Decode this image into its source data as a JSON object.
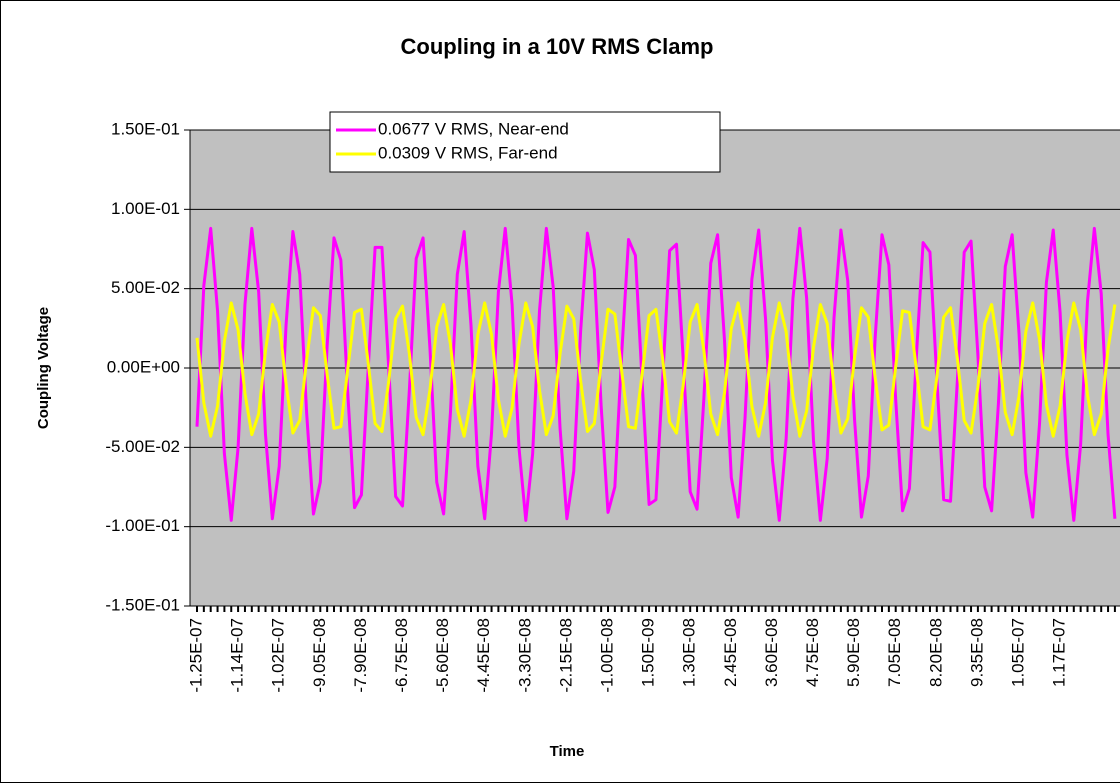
{
  "chart_data": {
    "type": "line",
    "title": "Coupling in a 10V RMS Clamp",
    "x_label": "Time",
    "y_label": "Coupling Voltage",
    "categories": [
      "-1.25E-07",
      null,
      null,
      null,
      null,
      null,
      "-1.14E-07",
      null,
      null,
      null,
      null,
      null,
      "-1.02E-07",
      null,
      null,
      null,
      null,
      null,
      "-9.05E-08",
      null,
      null,
      null,
      null,
      null,
      "-7.90E-08",
      null,
      null,
      null,
      null,
      null,
      "-6.75E-08",
      null,
      null,
      null,
      null,
      null,
      "-5.60E-08",
      null,
      null,
      null,
      null,
      null,
      "-4.45E-08",
      null,
      null,
      null,
      null,
      null,
      "-3.30E-08",
      null,
      null,
      null,
      null,
      null,
      "-2.15E-08",
      null,
      null,
      null,
      null,
      null,
      "-1.00E-08",
      null,
      null,
      null,
      null,
      null,
      "1.50E-09",
      null,
      null,
      null,
      null,
      null,
      "1.30E-08",
      null,
      null,
      null,
      null,
      null,
      "2.45E-08",
      null,
      null,
      null,
      null,
      null,
      "3.60E-08",
      null,
      null,
      null,
      null,
      null,
      "4.75E-08",
      null,
      null,
      null,
      null,
      null,
      "5.90E-08",
      null,
      null,
      null,
      null,
      null,
      "7.05E-08",
      null,
      null,
      null,
      null,
      null,
      "8.20E-08",
      null,
      null,
      null,
      null,
      null,
      "9.35E-08",
      null,
      null,
      null,
      null,
      null,
      "1.05E-07",
      null,
      null,
      null,
      null,
      null,
      "1.17E-07",
      null,
      null,
      null,
      null,
      null,
      null,
      null,
      null
    ],
    "series": [
      {
        "name": "0.0677 V RMS, Near-end",
        "color": "#ff00ff",
        "values": [
          -0.037,
          0.052,
          0.088,
          0.036,
          -0.054,
          -0.096,
          -0.05,
          0.04,
          0.088,
          0.048,
          -0.042,
          -0.095,
          -0.062,
          0.027,
          0.086,
          0.059,
          -0.028,
          -0.092,
          -0.072,
          0.014,
          0.082,
          0.068,
          -0.015,
          -0.088,
          -0.08,
          0.0,
          0.076,
          0.076,
          -0.001,
          -0.081,
          -0.087,
          -0.014,
          0.069,
          0.082,
          0.013,
          -0.072,
          -0.092,
          -0.028,
          0.059,
          0.086,
          0.027,
          -0.062,
          -0.095,
          -0.041,
          0.048,
          0.088,
          0.04,
          -0.05,
          -0.096,
          -0.054,
          0.036,
          0.088,
          0.051,
          -0.038,
          -0.095,
          -0.065,
          0.023,
          0.085,
          0.062,
          -0.024,
          -0.091,
          -0.075,
          0.009,
          0.081,
          0.071,
          -0.01,
          -0.086,
          -0.083,
          -0.005,
          0.074,
          0.078,
          0.004,
          -0.078,
          -0.089,
          -0.019,
          0.066,
          0.084,
          0.018,
          -0.069,
          -0.094,
          -0.032,
          0.056,
          0.087,
          0.031,
          -0.058,
          -0.096,
          -0.045,
          0.044,
          0.088,
          0.044,
          -0.046,
          -0.096,
          -0.057,
          0.032,
          0.087,
          0.055,
          -0.033,
          -0.094,
          -0.068,
          0.019,
          0.084,
          0.065,
          -0.02,
          -0.09,
          -0.076,
          0.006,
          0.079,
          0.073,
          -0.006,
          -0.083,
          -0.084,
          -0.008,
          0.073,
          0.08,
          0.008,
          -0.075,
          -0.09,
          -0.022,
          0.064,
          0.084,
          0.022,
          -0.066,
          -0.094,
          -0.035,
          0.054,
          0.087,
          0.035,
          -0.055,
          -0.096,
          -0.048,
          0.042,
          0.088,
          0.047,
          -0.042,
          -0.095
        ]
      },
      {
        "name": "0.0309 V RMS, Far-end",
        "color": "#ffff00",
        "values": [
          0.019,
          -0.022,
          -0.043,
          -0.024,
          0.017,
          0.041,
          0.024,
          -0.016,
          -0.042,
          -0.029,
          0.011,
          0.04,
          0.029,
          -0.01,
          -0.041,
          -0.033,
          0.005,
          0.038,
          0.033,
          -0.004,
          -0.038,
          -0.037,
          -0.001,
          0.035,
          0.037,
          0.003,
          -0.035,
          -0.04,
          -0.008,
          0.031,
          0.039,
          0.009,
          -0.031,
          -0.042,
          -0.014,
          0.026,
          0.04,
          0.015,
          -0.026,
          -0.043,
          -0.02,
          0.021,
          0.041,
          0.021,
          -0.02,
          -0.043,
          -0.025,
          0.015,
          0.041,
          0.026,
          -0.014,
          -0.042,
          -0.03,
          0.009,
          0.039,
          0.031,
          -0.008,
          -0.04,
          -0.035,
          0.003,
          0.037,
          0.034,
          -0.002,
          -0.037,
          -0.038,
          -0.003,
          0.033,
          0.037,
          0.005,
          -0.034,
          -0.041,
          -0.01,
          0.029,
          0.04,
          0.011,
          -0.029,
          -0.042,
          -0.016,
          0.025,
          0.041,
          0.017,
          -0.024,
          -0.043,
          -0.022,
          0.019,
          0.041,
          0.023,
          -0.018,
          -0.043,
          -0.027,
          0.013,
          0.04,
          0.028,
          -0.012,
          -0.041,
          -0.032,
          0.007,
          0.038,
          0.032,
          -0.006,
          -0.039,
          -0.036,
          0.001,
          0.036,
          0.035,
          0.0,
          -0.037,
          -0.039,
          -0.006,
          0.032,
          0.038,
          0.006,
          -0.033,
          -0.041,
          -0.012,
          0.028,
          0.04,
          0.012,
          -0.028,
          -0.042,
          -0.018,
          0.023,
          0.041,
          0.018,
          -0.023,
          -0.043,
          -0.024,
          0.017,
          0.041,
          0.024,
          -0.017,
          -0.042,
          -0.029,
          0.012,
          0.04
        ]
      }
    ],
    "ylim": [
      -0.15,
      0.15
    ],
    "yticks": [
      {
        "value": -0.15,
        "label": "-1.50E-01"
      },
      {
        "value": -0.1,
        "label": "-1.00E-01"
      },
      {
        "value": -0.05,
        "label": "-5.00E-02"
      },
      {
        "value": 0,
        "label": "0.00E+00"
      },
      {
        "value": 0.05,
        "label": "5.00E-02"
      },
      {
        "value": 0.1,
        "label": "1.00E-01"
      },
      {
        "value": 0.15,
        "label": "1.50E-01"
      }
    ],
    "grid": true,
    "plot_background": "#c0c0c0",
    "legend": "top"
  }
}
